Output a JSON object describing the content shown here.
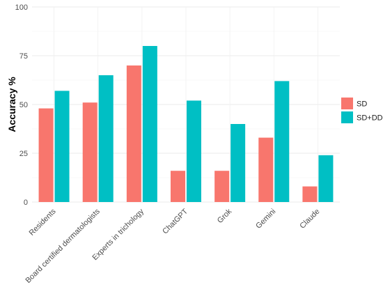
{
  "chart_data": {
    "type": "bar",
    "ylabel": "Accuracy %",
    "ylim": [
      0,
      100
    ],
    "yticks": [
      0,
      25,
      50,
      75,
      100
    ],
    "categories": [
      "Residents",
      "Board certified dermatologists",
      "Experts in trichology",
      "ChatGPT",
      "Grok",
      "Gemini",
      "Claude"
    ],
    "series": [
      {
        "name": "SD",
        "color": "#F8766D",
        "values": [
          48,
          51,
          70,
          16,
          16,
          33,
          8
        ]
      },
      {
        "name": "SD+DD",
        "color": "#00BFC4",
        "values": [
          57,
          65,
          80,
          52,
          40,
          62,
          24
        ]
      }
    ],
    "legend": {
      "position": "right"
    },
    "grid": true
  }
}
